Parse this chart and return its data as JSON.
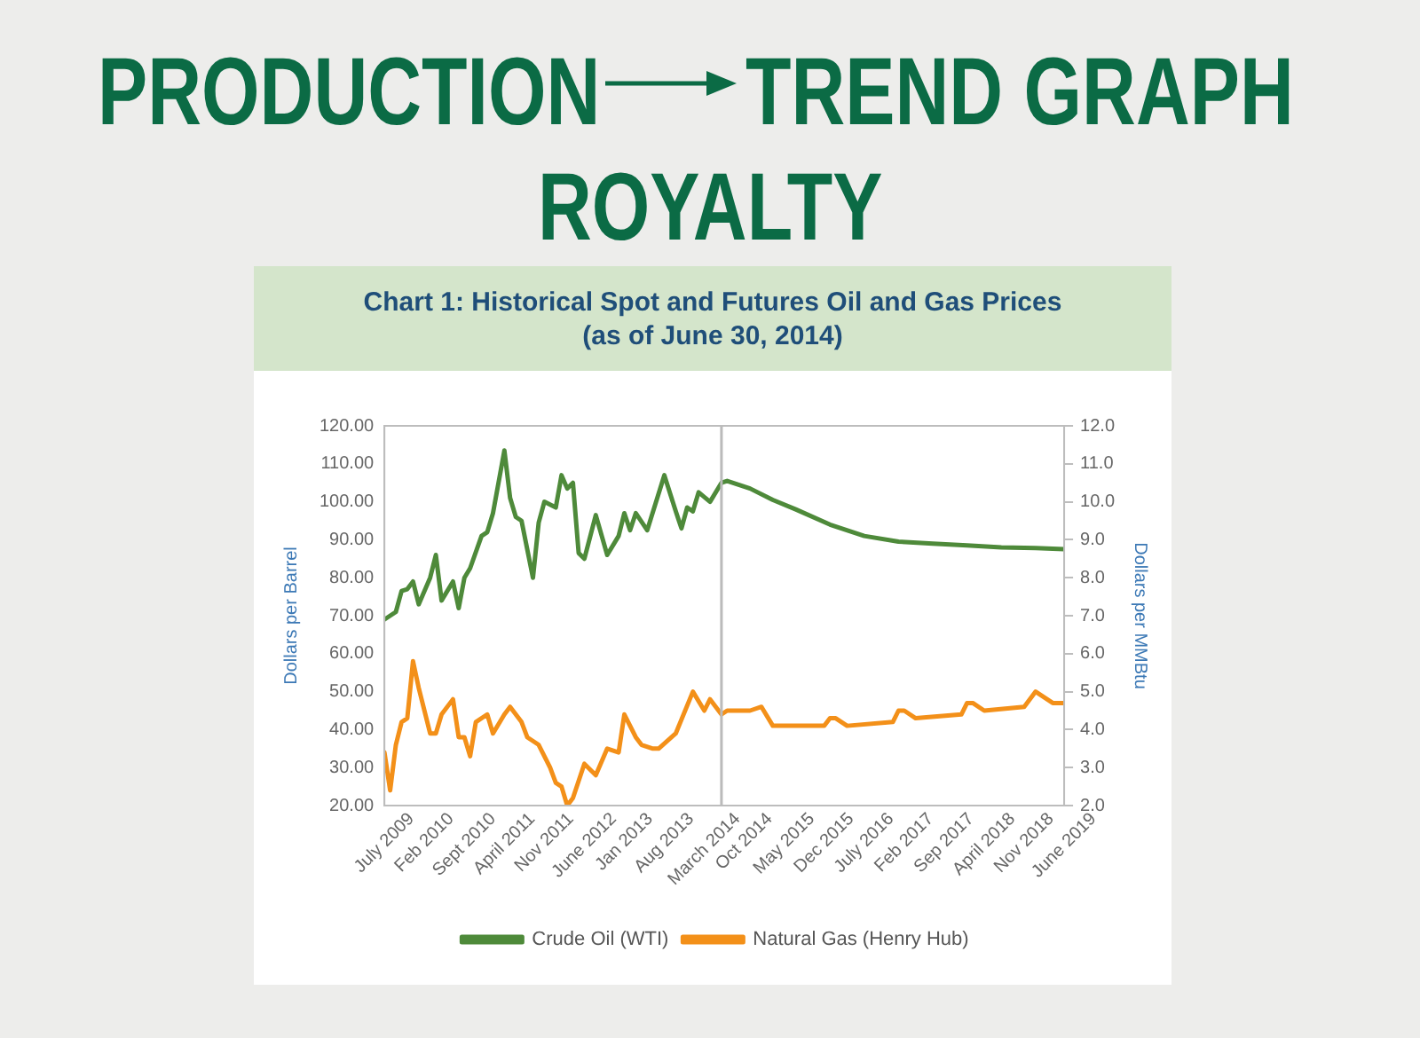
{
  "chart_data": {
    "type": "line",
    "title": "Chart 1: Historical Spot and Futures Oil and Gas Prices",
    "subtitle": "(as of June 30, 2014)",
    "ylabel": "Dollars per Barrel",
    "y2label": "Dollars per MMBtu",
    "annotations": [
      "PRODUCTION",
      "TREND GRAPH",
      "ROYALTY"
    ],
    "series": [
      {
        "name": "Crude Oil (WTI)",
        "color": "#4e8a3a",
        "x": [
          "2009-07",
          "2009-08",
          "2009-09",
          "2009-10",
          "2009-11",
          "2009-12",
          "2010-01",
          "2010-03",
          "2010-04",
          "2010-05",
          "2010-07",
          "2010-08",
          "2010-09",
          "2010-10",
          "2010-12",
          "2011-01",
          "2011-02",
          "2011-04",
          "2011-05",
          "2011-06",
          "2011-07",
          "2011-09",
          "2011-10",
          "2011-11",
          "2012-01",
          "2012-02",
          "2012-03",
          "2012-04",
          "2012-05",
          "2012-06",
          "2012-08",
          "2012-10",
          "2012-12",
          "2013-01",
          "2013-02",
          "2013-03",
          "2013-05",
          "2013-08",
          "2013-10",
          "2013-11",
          "2013-12",
          "2014-01",
          "2014-02",
          "2014-04",
          "2014-06",
          "2014-07",
          "2014-11",
          "2015-03",
          "2015-07",
          "2016-01",
          "2016-07",
          "2017-01",
          "2017-07",
          "2018-01",
          "2018-07",
          "2019-01",
          "2019-06"
        ],
        "values": [
          69,
          70,
          71,
          76.5,
          77,
          79,
          73,
          80,
          86,
          74,
          79,
          72,
          80,
          82.5,
          91,
          92,
          97,
          113.5,
          101,
          96,
          95,
          80,
          94.5,
          100,
          98.5,
          107,
          103.5,
          105,
          86.5,
          85,
          96.5,
          86,
          91,
          97,
          92.5,
          97,
          92.5,
          107,
          97.5,
          93,
          98.5,
          97.5,
          102.5,
          100,
          105,
          105.5,
          103.5,
          100.5,
          98,
          94,
          91,
          89.5,
          89,
          88.5,
          88,
          87.8,
          87.5
        ]
      },
      {
        "name": "Natural Gas (Henry Hub)",
        "color": "#f39019",
        "axis": "y2",
        "x": [
          "2009-07",
          "2009-08",
          "2009-09",
          "2009-10",
          "2009-11",
          "2009-12",
          "2010-01",
          "2010-03",
          "2010-04",
          "2010-05",
          "2010-07",
          "2010-08",
          "2010-09",
          "2010-10",
          "2010-11",
          "2011-01",
          "2011-02",
          "2011-04",
          "2011-05",
          "2011-07",
          "2011-08",
          "2011-10",
          "2011-12",
          "2012-01",
          "2012-02",
          "2012-03",
          "2012-04",
          "2012-06",
          "2012-08",
          "2012-10",
          "2012-12",
          "2013-01",
          "2013-03",
          "2013-04",
          "2013-06",
          "2013-07",
          "2013-10",
          "2014-01",
          "2014-03",
          "2014-04",
          "2014-06",
          "2014-07",
          "2014-11",
          "2015-01",
          "2015-03",
          "2015-12",
          "2016-01",
          "2016-02",
          "2016-04",
          "2016-12",
          "2017-01",
          "2017-02",
          "2017-04",
          "2017-12",
          "2018-01",
          "2018-02",
          "2018-04",
          "2018-11",
          "2019-01",
          "2019-02",
          "2019-04",
          "2019-06"
        ],
        "values": [
          3.4,
          2.4,
          3.6,
          4.2,
          4.3,
          5.8,
          5.1,
          3.9,
          3.9,
          4.4,
          4.8,
          3.8,
          3.8,
          3.3,
          4.2,
          4.4,
          3.9,
          4.4,
          4.6,
          4.2,
          3.8,
          3.6,
          3.0,
          2.6,
          2.5,
          2.0,
          2.2,
          3.1,
          2.8,
          3.5,
          3.4,
          4.4,
          3.8,
          3.6,
          3.5,
          3.5,
          3.9,
          5.0,
          4.5,
          4.8,
          4.4,
          4.5,
          4.5,
          4.6,
          4.1,
          4.1,
          4.3,
          4.3,
          4.1,
          4.2,
          4.5,
          4.5,
          4.3,
          4.4,
          4.7,
          4.7,
          4.5,
          4.6,
          5.0,
          4.9,
          4.7,
          4.7
        ]
      }
    ],
    "xlim": [
      "2009-07",
      "2019-06"
    ],
    "xticks": [
      {
        "value": "2009-07",
        "label": "July 2009"
      },
      {
        "value": "2010-02",
        "label": "Feb 2010"
      },
      {
        "value": "2010-09",
        "label": "Sept 2010"
      },
      {
        "value": "2011-04",
        "label": "April 2011"
      },
      {
        "value": "2011-11",
        "label": "Nov 2011"
      },
      {
        "value": "2012-06",
        "label": "June 2012"
      },
      {
        "value": "2013-01",
        "label": "Jan 2013"
      },
      {
        "value": "2013-08",
        "label": "Aug 2013"
      },
      {
        "value": "2014-03",
        "label": "March 2014"
      },
      {
        "value": "2014-10",
        "label": "Oct 2014"
      },
      {
        "value": "2015-05",
        "label": "May 2015"
      },
      {
        "value": "2015-12",
        "label": "Dec 2015"
      },
      {
        "value": "2016-07",
        "label": "July 2016"
      },
      {
        "value": "2017-02",
        "label": "Feb 2017"
      },
      {
        "value": "2017-09",
        "label": "Sep 2017"
      },
      {
        "value": "2018-04",
        "label": "April 2018"
      },
      {
        "value": "2018-11",
        "label": "Nov 2018"
      },
      {
        "value": "2019-06",
        "label": "June 2019"
      }
    ],
    "ylim": [
      20,
      120
    ],
    "yticks": [
      {
        "value": 20,
        "label": "20.00"
      },
      {
        "value": 30,
        "label": "30.00"
      },
      {
        "value": 40,
        "label": "40.00"
      },
      {
        "value": 50,
        "label": "50.00"
      },
      {
        "value": 60,
        "label": "60.00"
      },
      {
        "value": 70,
        "label": "70.00"
      },
      {
        "value": 80,
        "label": "80.00"
      },
      {
        "value": 90,
        "label": "90.00"
      },
      {
        "value": 100,
        "label": "100.00"
      },
      {
        "value": 110,
        "label": "110.00"
      },
      {
        "value": 120,
        "label": "120.00"
      }
    ],
    "y2lim": [
      2,
      12
    ],
    "y2ticks": [
      {
        "value": 2,
        "label": "2.0"
      },
      {
        "value": 3,
        "label": "3.0"
      },
      {
        "value": 4,
        "label": "4.0"
      },
      {
        "value": 5,
        "label": "5.0"
      },
      {
        "value": 6,
        "label": "6.0"
      },
      {
        "value": 7,
        "label": "7.0"
      },
      {
        "value": 8,
        "label": "8.0"
      },
      {
        "value": 9,
        "label": "9.0"
      },
      {
        "value": 10,
        "label": "10.0"
      },
      {
        "value": 11,
        "label": "11.0"
      },
      {
        "value": 12,
        "label": "12.0"
      }
    ],
    "ref_lines": [
      {
        "axis": "x",
        "value": "2014-06",
        "color": "#bbbbbb"
      }
    ],
    "grid": false,
    "legend": "bottom",
    "marker": "none",
    "line_style": "solid"
  }
}
